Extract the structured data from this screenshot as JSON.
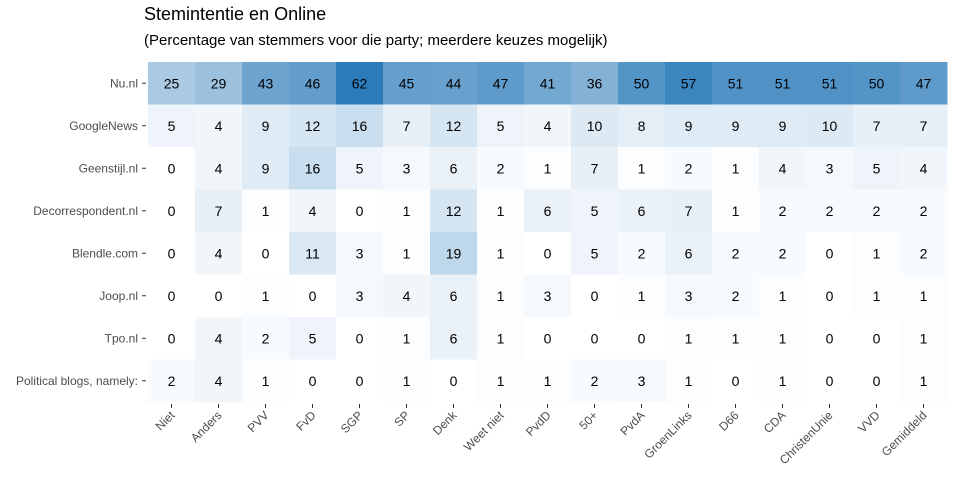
{
  "chart_data": {
    "type": "heatmap",
    "title": "Stemintentie en Online",
    "subtitle": "(Percentage van stemmers voor die party; meerdere keuzes mogelijk)",
    "xlabel": "",
    "ylabel": "",
    "x_categories": [
      "Niet",
      "Anders",
      "PVV",
      "FvD",
      "SGP",
      "SP",
      "Denk",
      "Weet niet",
      "PvdD",
      "50+",
      "PvdA",
      "GroenLinks",
      "D66",
      "CDA",
      "ChristenUnie",
      "VVD",
      "Gemiddeld"
    ],
    "y_categories": [
      "Nu.nl",
      "GoogleNews",
      "Geenstijl.nl",
      "Decorrespondent.nl",
      "Blendle.com",
      "Joop.nl",
      "Tpo.nl",
      "Political blogs, namely:"
    ],
    "values": [
      [
        25,
        29,
        43,
        46,
        62,
        45,
        44,
        47,
        41,
        36,
        50,
        57,
        51,
        51,
        51,
        50,
        47
      ],
      [
        5,
        4,
        9,
        12,
        16,
        7,
        12,
        5,
        4,
        10,
        8,
        9,
        9,
        9,
        10,
        7,
        7
      ],
      [
        0,
        4,
        9,
        16,
        5,
        3,
        6,
        2,
        1,
        7,
        1,
        2,
        1,
        4,
        3,
        5,
        4
      ],
      [
        0,
        7,
        1,
        4,
        0,
        1,
        12,
        1,
        6,
        5,
        6,
        7,
        1,
        2,
        2,
        2,
        2
      ],
      [
        0,
        4,
        0,
        11,
        3,
        1,
        19,
        1,
        0,
        5,
        2,
        6,
        2,
        2,
        0,
        1,
        2
      ],
      [
        0,
        0,
        1,
        0,
        3,
        4,
        6,
        1,
        3,
        0,
        1,
        3,
        2,
        1,
        0,
        1,
        1
      ],
      [
        0,
        4,
        2,
        5,
        0,
        1,
        6,
        1,
        0,
        0,
        0,
        1,
        1,
        1,
        0,
        0,
        1
      ],
      [
        2,
        4,
        1,
        0,
        0,
        1,
        0,
        1,
        1,
        2,
        3,
        1,
        0,
        1,
        0,
        0,
        1
      ]
    ],
    "color_low": "#ffffff",
    "color_high": "#2b7bba",
    "value_range": [
      0,
      62
    ],
    "grid": true,
    "legend": "none"
  }
}
